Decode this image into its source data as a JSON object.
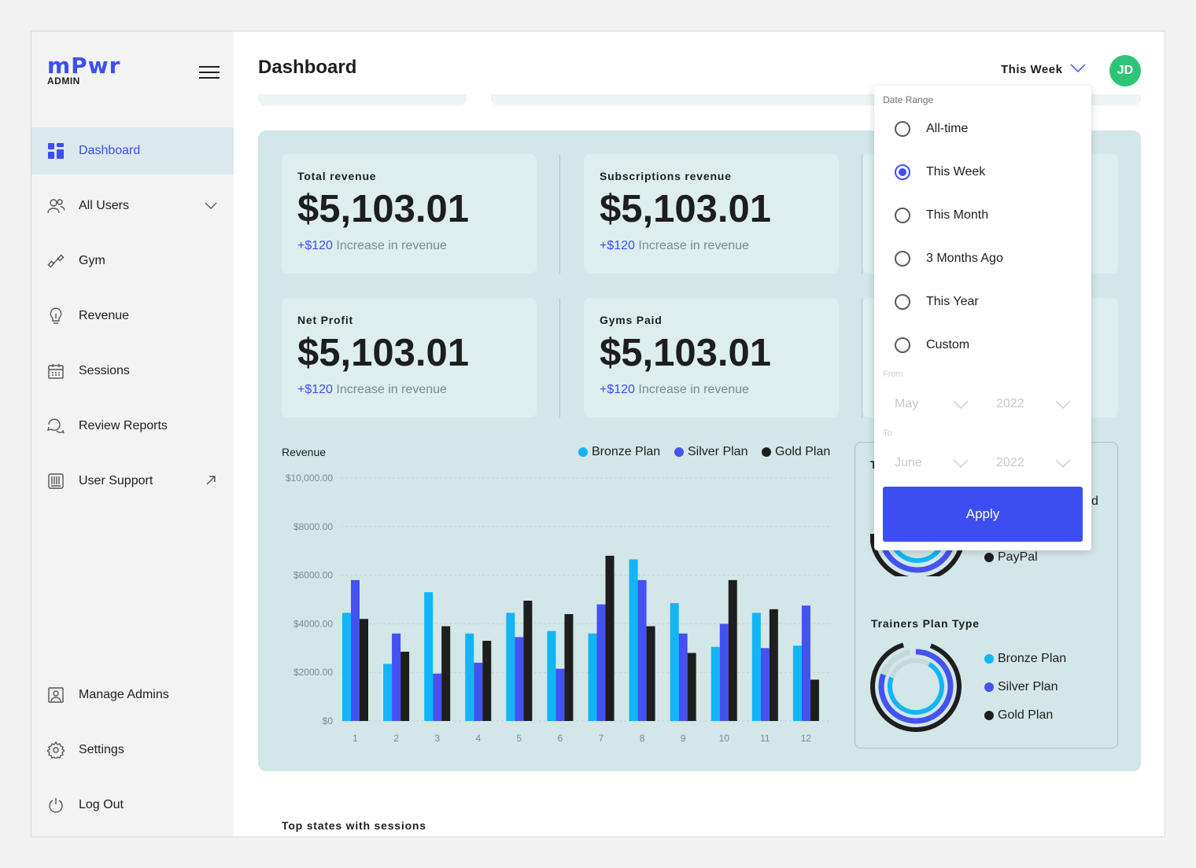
{
  "app": {
    "logo_main": "mPwr",
    "logo_sub": "ADMIN"
  },
  "sidebar": {
    "items": [
      {
        "label": "Dashboard",
        "icon": "grid-icon"
      },
      {
        "label": "All Users",
        "icon": "users-icon"
      },
      {
        "label": "Gym",
        "icon": "dumbbell-icon"
      },
      {
        "label": "Revenue",
        "icon": "lightbulb-icon"
      },
      {
        "label": "Sessions",
        "icon": "calendar-icon"
      },
      {
        "label": "Review Reports",
        "icon": "chat-icon"
      },
      {
        "label": "User Support",
        "icon": "support-icon"
      }
    ],
    "bottom_items": [
      {
        "label": "Manage Admins",
        "icon": "admin-icon"
      },
      {
        "label": "Settings",
        "icon": "gear-icon"
      },
      {
        "label": "Log Out",
        "icon": "power-icon"
      }
    ]
  },
  "header": {
    "title": "Dashboard",
    "range_label": "This Week",
    "avatar_initials": "JD"
  },
  "cards": [
    {
      "label": "Total revenue",
      "value": "$5,103.01",
      "delta_amount": "+$120",
      "delta_text": " Increase in revenue"
    },
    {
      "label": "Subscriptions revenue",
      "value": "$5,103.01",
      "delta_amount": "+$120",
      "delta_text": " Increase in revenue"
    },
    {
      "label": "Net Profit",
      "value": "$5,103.01",
      "delta_amount": "+$120",
      "delta_text": " Increase in revenue"
    },
    {
      "label": "Gyms Paid",
      "value": "$5,103.01",
      "delta_amount": "+$120",
      "delta_text": " Increase in revenue"
    }
  ],
  "chart_data": {
    "type": "bar",
    "title": "Revenue",
    "categories": [
      "1",
      "2",
      "3",
      "4",
      "5",
      "6",
      "7",
      "8",
      "9",
      "10",
      "11",
      "12"
    ],
    "yticks": [
      "$10,000.00",
      "$8000.00",
      "$6000.00",
      "$4000.00",
      "$2000.00",
      "$0"
    ],
    "ylim": [
      0,
      10000
    ],
    "legend_position": "top-right",
    "series": [
      {
        "name": "Bronze Plan",
        "color": "#12b5f5",
        "values": [
          4450,
          2350,
          5300,
          3600,
          4450,
          3700,
          3600,
          6650,
          4850,
          3050,
          4450,
          3100
        ]
      },
      {
        "name": "Silver Plan",
        "color": "#4352f0",
        "values": [
          5800,
          3600,
          1950,
          2400,
          3450,
          2150,
          4800,
          5800,
          3600,
          4000,
          3000,
          4750
        ]
      },
      {
        "name": "Gold Plan",
        "color": "#1e1e1e",
        "values": [
          4200,
          2850,
          3900,
          3300,
          4950,
          4400,
          6800,
          3900,
          2800,
          5800,
          4600,
          1700
        ]
      }
    ]
  },
  "side_panel": {
    "partial_title": "T",
    "partial_legend_tail": "d",
    "paypal_label": "PayPal",
    "trainers_title": "Trainers Plan Type",
    "trainers_legend": [
      "Bronze Plan",
      "Silver Plan",
      "Gold Plan"
    ]
  },
  "bottom": {
    "title": "Top states with sessions"
  },
  "dropdown": {
    "label": "Date Range",
    "options": [
      "All-time",
      "This Week",
      "This Month",
      "3 Months Ago",
      "This Year",
      "Custom"
    ],
    "selected": "This Week",
    "from_label": "From",
    "to_label": "To",
    "from_month": "May",
    "from_year": "2022",
    "to_month": "June",
    "to_year": "2022",
    "apply_label": "Apply"
  },
  "colors": {
    "accent": "#3c4ef0",
    "bronze": "#12b5f5",
    "silver": "#4352f0",
    "gold": "#1e1e1e",
    "avatar": "#2cc577"
  }
}
